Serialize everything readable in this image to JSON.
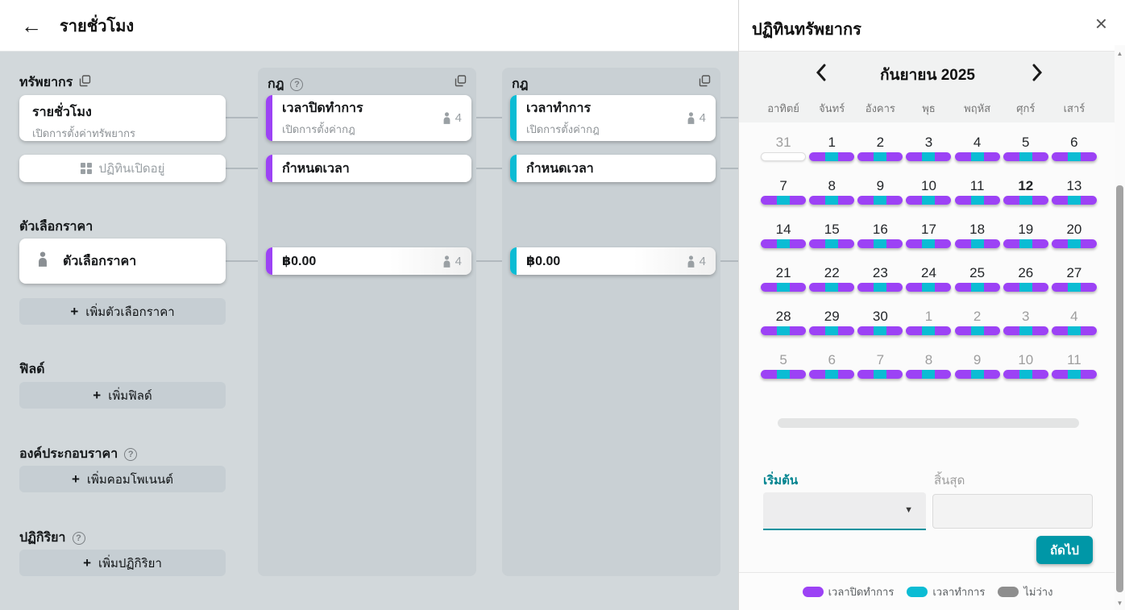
{
  "colors": {
    "purple": "#9c42f5",
    "cyan": "#0bbcd4",
    "gray_pill": "#8e8e8e",
    "teal_button": "#0097a7"
  },
  "header": {
    "title": "รายชั่วโมง"
  },
  "sidebar": {
    "resources": {
      "label": "ทรัพยากร",
      "card": {
        "title": "รายชั่วโมง",
        "subtitle": "เปิดการตั้งค่าทรัพยากร"
      },
      "open_calendar_card": {
        "label": "ปฏิทินเปิดอยู่"
      }
    },
    "price_options": {
      "label": "ตัวเลือกราคา",
      "card": {
        "label": "ตัวเลือกราคา"
      },
      "add_label": "เพิ่มตัวเลือกราคา"
    },
    "fields": {
      "label": "ฟิลด์",
      "add_label": "เพิ่มฟิลด์"
    },
    "components": {
      "label": "องค์ประกอบราคา",
      "add_label": "เพิ่มคอมโพเนนต์"
    },
    "reactions": {
      "label": "ปฏิกิริยา",
      "add_label": "เพิ่มปฏิกิริยา"
    },
    "plus": "+",
    "help": "?"
  },
  "rule_columns": [
    {
      "header": "กฎ",
      "accent": "#9c42f5",
      "cards": [
        {
          "title": "เวลาปิดทำการ",
          "subtitle": "เปิดการตั้งค่ากฎ",
          "capacity": "4"
        },
        {
          "title": "กำหนดเวลา"
        },
        {
          "title": "฿0.00",
          "capacity": "4"
        }
      ]
    },
    {
      "header": "กฎ",
      "accent": "#0bbcd4",
      "cards": [
        {
          "title": "เวลาทำการ",
          "subtitle": "เปิดการตั้งค่ากฎ",
          "capacity": "4"
        },
        {
          "title": "กำหนดเวลา"
        },
        {
          "title": "฿0.00",
          "capacity": "4"
        }
      ]
    }
  ],
  "calendar_panel": {
    "title": "ปฏิทินทรัพยากร",
    "month_label": "กันยายน 2025",
    "day_names": [
      "อาทิตย์",
      "จันทร์",
      "อังคาร",
      "พุธ",
      "พฤหัส",
      "ศุกร์",
      "เสาร์"
    ],
    "weeks": [
      [
        {
          "n": "31",
          "muted": true,
          "pill": "empty"
        },
        {
          "n": "1",
          "pill": "mixed"
        },
        {
          "n": "2",
          "pill": "mixed"
        },
        {
          "n": "3",
          "pill": "mixed"
        },
        {
          "n": "4",
          "pill": "mixed"
        },
        {
          "n": "5",
          "pill": "mixed"
        },
        {
          "n": "6",
          "pill": "mixed"
        }
      ],
      [
        {
          "n": "7",
          "pill": "mixed"
        },
        {
          "n": "8",
          "pill": "mixed"
        },
        {
          "n": "9",
          "pill": "mixed"
        },
        {
          "n": "10",
          "pill": "mixed"
        },
        {
          "n": "11",
          "pill": "mixed"
        },
        {
          "n": "12",
          "today": true,
          "pill": "mixed"
        },
        {
          "n": "13",
          "pill": "mixed"
        }
      ],
      [
        {
          "n": "14",
          "pill": "mixed"
        },
        {
          "n": "15",
          "pill": "mixed"
        },
        {
          "n": "16",
          "pill": "mixed"
        },
        {
          "n": "17",
          "pill": "mixed"
        },
        {
          "n": "18",
          "pill": "mixed"
        },
        {
          "n": "19",
          "pill": "mixed"
        },
        {
          "n": "20",
          "pill": "mixed"
        }
      ],
      [
        {
          "n": "21",
          "pill": "mixed"
        },
        {
          "n": "22",
          "pill": "mixed"
        },
        {
          "n": "23",
          "pill": "mixed"
        },
        {
          "n": "24",
          "pill": "mixed"
        },
        {
          "n": "25",
          "pill": "mixed"
        },
        {
          "n": "26",
          "pill": "mixed"
        },
        {
          "n": "27",
          "pill": "mixed"
        }
      ],
      [
        {
          "n": "28",
          "pill": "mixed"
        },
        {
          "n": "29",
          "pill": "mixed"
        },
        {
          "n": "30",
          "pill": "mixed"
        },
        {
          "n": "1",
          "muted": true,
          "pill": "mixed"
        },
        {
          "n": "2",
          "muted": true,
          "pill": "mixed"
        },
        {
          "n": "3",
          "muted": true,
          "pill": "mixed"
        },
        {
          "n": "4",
          "muted": true,
          "pill": "mixed"
        }
      ],
      [
        {
          "n": "5",
          "muted": true,
          "pill": "mixed"
        },
        {
          "n": "6",
          "muted": true,
          "pill": "mixed"
        },
        {
          "n": "7",
          "muted": true,
          "pill": "mixed"
        },
        {
          "n": "8",
          "muted": true,
          "pill": "mixed"
        },
        {
          "n": "9",
          "muted": true,
          "pill": "mixed"
        },
        {
          "n": "10",
          "muted": true,
          "pill": "mixed"
        },
        {
          "n": "11",
          "muted": true,
          "pill": "mixed"
        }
      ]
    ],
    "start_label": "เริ่มต้น",
    "end_label": "สิ้นสุด",
    "next_button": "ถัดไป",
    "legend": [
      {
        "label": "เวลาปิดทำการ",
        "color": "#9c42f5"
      },
      {
        "label": "เวลาทำการ",
        "color": "#0bbcd4"
      },
      {
        "label": "ไม่ว่าง",
        "color": "#8e8e8e"
      }
    ]
  }
}
